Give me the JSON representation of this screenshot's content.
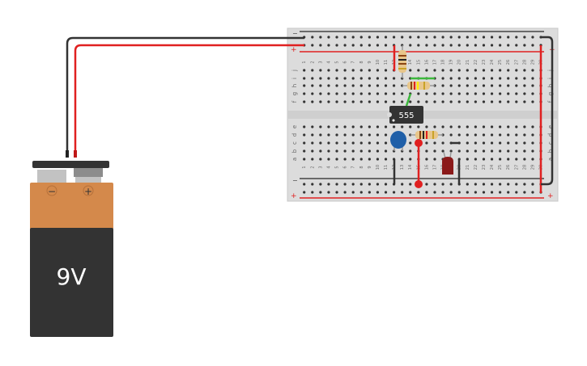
{
  "battery": {
    "label": "9V",
    "neg_symbol": "−",
    "pos_symbol": "+",
    "case_color": "#d4894b",
    "body_color": "#333333"
  },
  "chip": {
    "label": "555"
  },
  "breadboard": {
    "columns": [
      "1",
      "2",
      "3",
      "4",
      "5",
      "6",
      "7",
      "8",
      "9",
      "10",
      "11",
      "12",
      "13",
      "14",
      "15",
      "16",
      "17",
      "18",
      "19",
      "20",
      "21",
      "22",
      "23",
      "24",
      "25",
      "26",
      "27",
      "28",
      "29",
      "30"
    ],
    "rows_top": [
      "j",
      "i",
      "h",
      "g",
      "f"
    ],
    "rows_bottom": [
      "e",
      "d",
      "c",
      "b",
      "a"
    ],
    "rail_minus": "−",
    "rail_plus": "+"
  },
  "colors": {
    "wire_red": "#e02020",
    "wire_black": "#333333",
    "wire_green": "#3cb83c",
    "capacitor": "#1f5fa8",
    "led": "#8b1a1a"
  }
}
